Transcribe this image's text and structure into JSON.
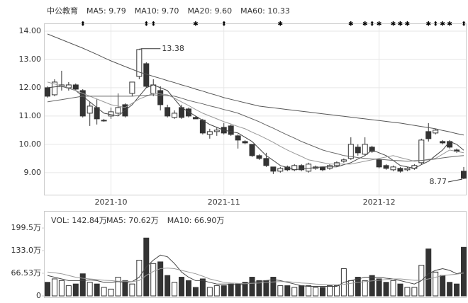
{
  "chart_data": [
    {
      "type": "candlestick",
      "title": "中公教育",
      "categories": [
        null,
        null,
        null,
        null,
        null,
        null,
        null,
        null,
        null,
        "2021-10",
        null,
        null,
        null,
        null,
        null,
        null,
        null,
        null,
        null,
        null,
        null,
        null,
        null,
        null,
        null,
        "2021-11",
        null,
        null,
        null,
        null,
        null,
        null,
        null,
        null,
        null,
        null,
        null,
        null,
        null,
        null,
        null,
        null,
        null,
        null,
        null,
        null,
        null,
        "2021-12",
        null,
        null,
        null,
        null,
        null,
        null,
        null,
        null,
        null,
        null,
        null,
        null
      ],
      "events": [
        null,
        null,
        null,
        null,
        null,
        "⬍",
        null,
        null,
        null,
        null,
        null,
        null,
        null,
        null,
        "⬍",
        "⬍",
        null,
        null,
        null,
        null,
        null,
        "✱",
        null,
        null,
        null,
        "⬍",
        null,
        null,
        null,
        null,
        null,
        null,
        null,
        "✱",
        null,
        null,
        null,
        null,
        null,
        null,
        null,
        null,
        null,
        "✱",
        null,
        "✱",
        "⬍",
        "✱",
        null,
        "✱",
        "✱",
        "✱",
        null,
        null,
        "✱",
        "⬍",
        "✱",
        "✱",
        null,
        "⬍"
      ],
      "open": [
        12.0,
        11.75,
        12.05,
        12.0,
        12.1,
        11.9,
        11.1,
        11.3,
        10.85,
        11.0,
        11.1,
        11.4,
        11.8,
        12.4,
        12.85,
        11.8,
        11.9,
        11.3,
        10.95,
        11.3,
        11.25,
        10.95,
        10.85,
        10.35,
        10.45,
        10.6,
        10.65,
        10.3,
        10.1,
        10.0,
        9.6,
        9.5,
        9.2,
        9.05,
        9.2,
        9.1,
        9.25,
        9.05,
        9.15,
        9.2,
        9.15,
        9.25,
        9.4,
        9.5,
        9.9,
        9.65,
        9.9,
        9.45,
        9.25,
        9.1,
        9.15,
        9.1,
        9.15,
        9.35,
        10.45,
        10.4,
        10.1,
        10.1,
        9.8,
        9.05
      ],
      "high": [
        12.05,
        12.3,
        12.6,
        12.2,
        12.15,
        11.95,
        11.5,
        11.6,
        10.9,
        11.3,
        11.8,
        11.45,
        12.2,
        13.38,
        12.9,
        12.3,
        12.05,
        11.4,
        11.2,
        11.4,
        11.3,
        11.0,
        10.9,
        10.55,
        10.6,
        10.75,
        10.7,
        10.35,
        10.15,
        10.0,
        9.65,
        9.7,
        9.2,
        9.2,
        9.25,
        9.3,
        9.3,
        9.35,
        9.25,
        9.2,
        9.3,
        9.4,
        9.5,
        10.25,
        10.0,
        10.25,
        9.95,
        9.5,
        9.3,
        9.25,
        9.2,
        9.2,
        9.3,
        10.2,
        10.75,
        10.55,
        10.15,
        10.15,
        9.85,
        9.2
      ],
      "low": [
        11.65,
        11.7,
        11.9,
        11.9,
        11.9,
        10.95,
        10.65,
        10.7,
        10.8,
        10.9,
        11.0,
        10.95,
        11.7,
        12.3,
        12.0,
        11.7,
        11.2,
        10.95,
        10.9,
        10.9,
        10.95,
        10.9,
        10.35,
        10.2,
        10.3,
        10.35,
        10.3,
        9.85,
        10.0,
        9.55,
        9.45,
        9.2,
        8.95,
        9.0,
        9.05,
        9.05,
        9.05,
        9.0,
        9.1,
        9.05,
        9.1,
        9.2,
        9.35,
        9.45,
        9.6,
        9.6,
        9.7,
        9.15,
        9.1,
        9.05,
        9.0,
        9.05,
        9.1,
        9.3,
        10.1,
        10.35,
        10.0,
        9.85,
        9.7,
        8.77
      ],
      "close": [
        11.7,
        12.2,
        12.1,
        12.1,
        11.95,
        11.0,
        11.35,
        10.9,
        10.85,
        11.15,
        11.3,
        11.0,
        12.2,
        13.35,
        12.05,
        12.1,
        11.4,
        11.0,
        11.1,
        10.95,
        11.0,
        10.9,
        10.4,
        10.45,
        10.5,
        10.4,
        10.35,
        10.15,
        10.05,
        9.6,
        9.5,
        9.25,
        9.05,
        9.15,
        9.1,
        9.25,
        9.1,
        9.3,
        9.2,
        9.1,
        9.25,
        9.35,
        9.45,
        10.0,
        9.7,
        10.0,
        9.75,
        9.2,
        9.15,
        9.2,
        9.05,
        9.15,
        9.25,
        10.15,
        10.2,
        10.5,
        10.05,
        9.9,
        9.75,
        8.8
      ],
      "series": [
        {
          "name": "MA5: 9.79",
          "color": "#444444",
          "values": [
            12.0,
            12.03,
            12.05,
            11.98,
            11.9,
            11.7,
            11.5,
            11.3,
            11.1,
            11.05,
            11.0,
            11.2,
            11.4,
            11.7,
            12.0,
            12.1,
            12.0,
            11.9,
            11.6,
            11.3,
            11.15,
            11.0,
            10.85,
            10.7,
            10.6,
            10.5,
            10.45,
            10.4,
            10.25,
            10.1,
            9.85,
            9.6,
            9.43,
            9.25,
            9.18,
            9.1,
            9.13,
            9.15,
            9.18,
            9.2,
            9.2,
            9.2,
            9.28,
            9.35,
            9.48,
            9.6,
            9.8,
            9.7,
            9.6,
            9.43,
            9.25,
            9.2,
            9.15,
            9.28,
            9.4,
            9.6,
            9.8,
            10.1,
            10.0,
            9.79
          ]
        },
        {
          "name": "MA10: 9.70",
          "color": "#999999",
          "values": [
            12.2,
            12.13,
            12.07,
            12.0,
            11.9,
            11.8,
            11.7,
            11.6,
            11.5,
            11.4,
            11.35,
            11.3,
            11.45,
            11.6,
            11.7,
            11.8,
            11.78,
            11.75,
            11.63,
            11.5,
            11.37,
            11.23,
            11.1,
            11.0,
            10.9,
            10.8,
            10.72,
            10.63,
            10.55,
            10.43,
            10.32,
            10.2,
            10.07,
            9.93,
            9.8,
            9.68,
            9.57,
            9.45,
            9.4,
            9.35,
            9.3,
            9.3,
            9.3,
            9.3,
            9.35,
            9.4,
            9.45,
            9.5,
            9.55,
            9.6,
            9.53,
            9.47,
            9.4,
            9.43,
            9.47,
            9.5,
            9.65,
            9.8,
            9.75,
            9.7
          ]
        },
        {
          "name": "MA20: 9.60",
          "color": "#666666",
          "values": [
            11.5,
            11.54,
            11.58,
            11.62,
            11.66,
            11.7,
            11.7,
            11.7,
            11.7,
            11.7,
            11.7,
            11.7,
            11.7,
            11.72,
            11.73,
            11.75,
            11.73,
            11.72,
            11.7,
            11.63,
            11.55,
            11.49,
            11.43,
            11.36,
            11.3,
            11.23,
            11.17,
            11.1,
            11.0,
            10.9,
            10.8,
            10.68,
            10.57,
            10.45,
            10.33,
            10.22,
            10.1,
            10.0,
            9.9,
            9.8,
            9.73,
            9.67,
            9.6,
            9.57,
            9.53,
            9.5,
            9.48,
            9.47,
            9.45,
            9.43,
            9.42,
            9.4,
            9.42,
            9.43,
            9.45,
            9.48,
            9.52,
            9.55,
            9.58,
            9.6
          ]
        },
        {
          "name": "MA60: 10.33",
          "color": "#555555",
          "values": [
            13.9,
            13.8,
            13.7,
            13.6,
            13.5,
            13.4,
            13.29,
            13.18,
            13.06,
            12.95,
            12.85,
            12.75,
            12.65,
            12.55,
            12.48,
            12.4,
            12.33,
            12.25,
            12.18,
            12.1,
            12.03,
            11.95,
            11.88,
            11.8,
            11.73,
            11.65,
            11.59,
            11.53,
            11.47,
            11.41,
            11.35,
            11.32,
            11.29,
            11.26,
            11.23,
            11.2,
            11.17,
            11.14,
            11.11,
            11.08,
            11.05,
            11.02,
            10.99,
            10.96,
            10.93,
            10.9,
            10.87,
            10.84,
            10.81,
            10.78,
            10.75,
            10.71,
            10.67,
            10.63,
            10.59,
            10.55,
            10.49,
            10.44,
            10.38,
            10.33
          ]
        }
      ],
      "ylim": [
        8.22,
        14.25
      ],
      "yticks": [
        {
          "value": 14,
          "label": "14.00"
        },
        {
          "value": 13,
          "label": "13.00"
        },
        {
          "value": 12,
          "label": "12.00"
        },
        {
          "value": 11,
          "label": "11.00"
        },
        {
          "value": 10,
          "label": "10.00"
        },
        {
          "value": 9,
          "label": "9.00"
        }
      ],
      "grid": true
    },
    {
      "type": "bar",
      "title": "VOL: 142.84万",
      "values": [
        40,
        50,
        45,
        30,
        35,
        65,
        40,
        35,
        25,
        20,
        55,
        45,
        35,
        105,
        170,
        95,
        100,
        60,
        40,
        55,
        45,
        25,
        50,
        25,
        30,
        30,
        35,
        35,
        40,
        55,
        45,
        45,
        55,
        30,
        30,
        25,
        30,
        30,
        25,
        25,
        30,
        30,
        80,
        45,
        55,
        45,
        60,
        50,
        40,
        45,
        35,
        25,
        25,
        90,
        138,
        70,
        60,
        40,
        35,
        142.84
      ],
      "series": [
        {
          "name": "MA5: 70.62万",
          "color": "#444444",
          "values": [
            60,
            55,
            50,
            45,
            45,
            45,
            47,
            45,
            40,
            40,
            42,
            40,
            42,
            55,
            85,
            105,
            120,
            115,
            95,
            70,
            55,
            45,
            45,
            40,
            35,
            35,
            35,
            32,
            35,
            40,
            42,
            45,
            48,
            45,
            40,
            35,
            30,
            28,
            28,
            28,
            28,
            28,
            40,
            45,
            50,
            55,
            55,
            55,
            52,
            50,
            45,
            40,
            35,
            45,
            65,
            75,
            80,
            75,
            65,
            70.62
          ]
        },
        {
          "name": "MA10: 66.90万",
          "color": "#999999",
          "values": [
            70,
            68,
            65,
            60,
            55,
            52,
            50,
            48,
            46,
            45,
            43,
            43,
            42,
            45,
            60,
            72,
            80,
            82,
            80,
            75,
            70,
            65,
            58,
            50,
            45,
            40,
            38,
            37,
            36,
            37,
            38,
            40,
            41,
            42,
            42,
            40,
            38,
            37,
            35,
            34,
            33,
            33,
            34,
            37,
            40,
            42,
            44,
            46,
            48,
            50,
            50,
            48,
            46,
            46,
            50,
            55,
            60,
            62,
            64,
            66.9
          ]
        }
      ],
      "ylim": [
        0,
        235
      ],
      "yticks": [
        0,
        {
          "value": 66.53,
          "label": "66.53万"
        },
        {
          "value": 133,
          "label": "133.0万"
        },
        {
          "value": 199.5,
          "label": "199.5万"
        }
      ]
    }
  ]
}
